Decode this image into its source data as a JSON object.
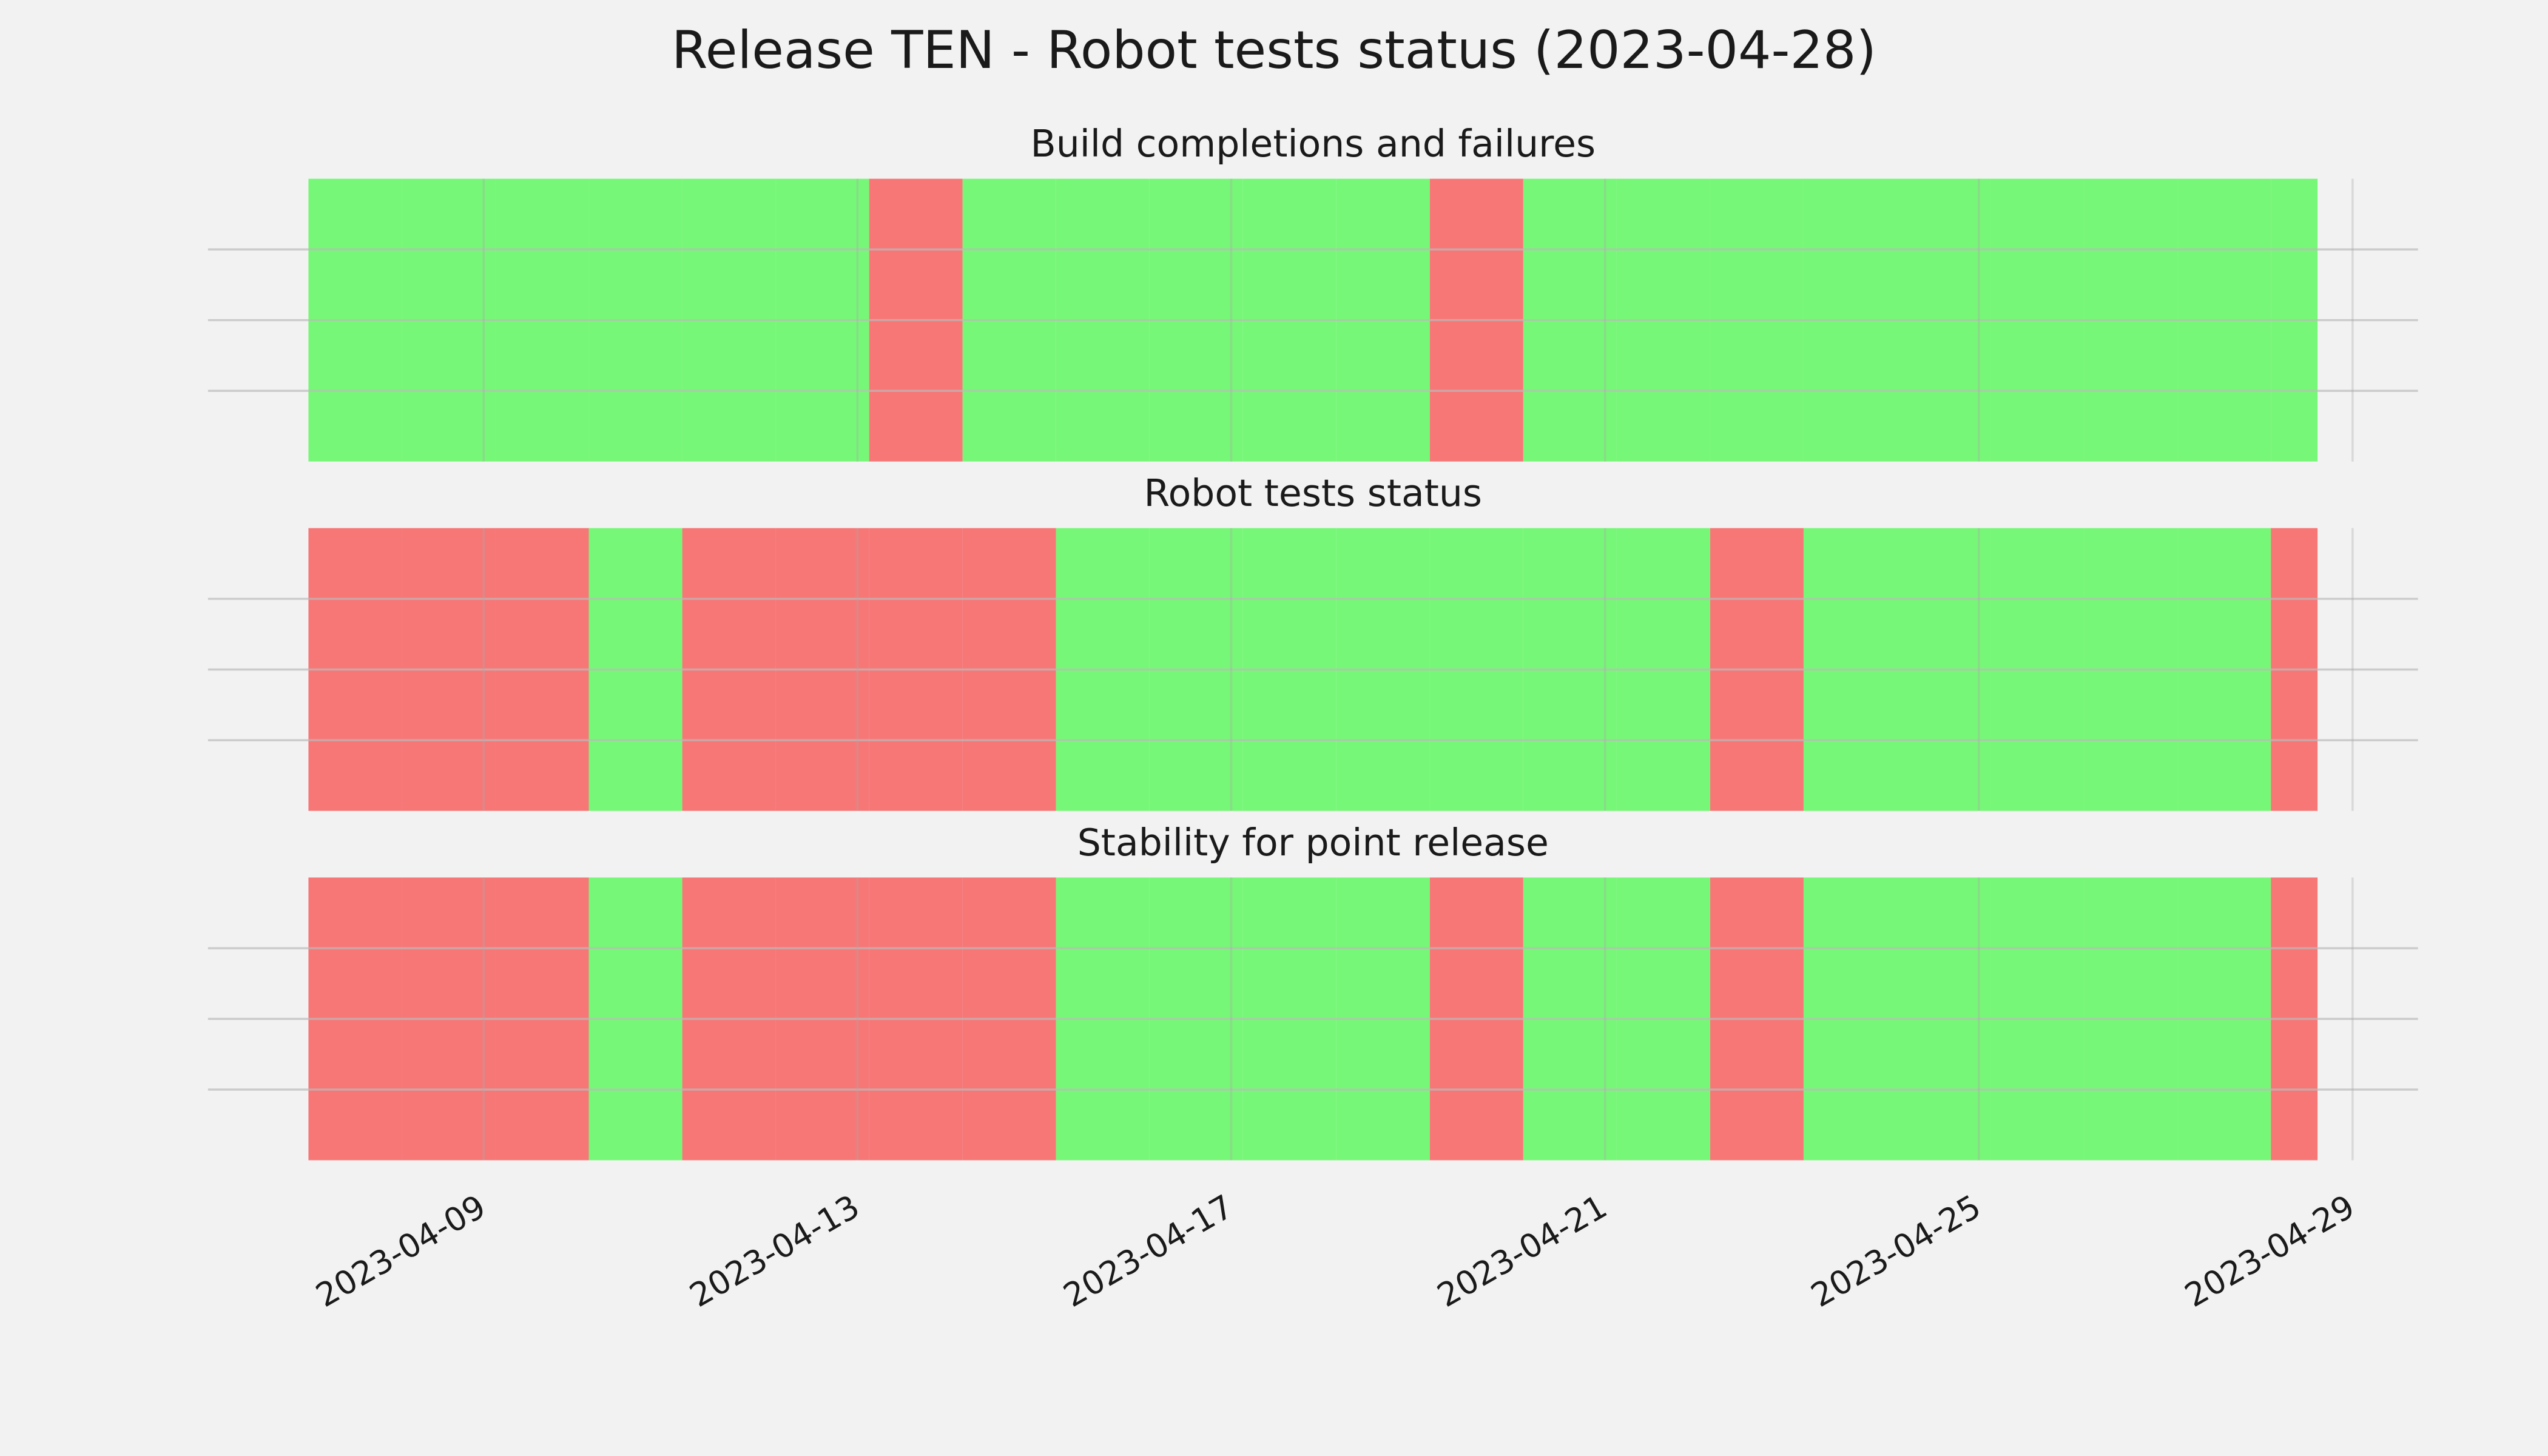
{
  "chart_data": {
    "type": "status-timeline",
    "title": "Release TEN - Robot tests status (2023-04-28)",
    "pass_color": "#77f777",
    "fail_color": "#f77777",
    "grid": true,
    "xlim": [
      "2023-04-06T01:12",
      "2023-04-29T16:48"
    ],
    "xticks": [
      "2023-04-09",
      "2023-04-13",
      "2023-04-17",
      "2023-04-21",
      "2023-04-25",
      "2023-04-29"
    ],
    "ylim": [
      0,
      1
    ],
    "yticks": [
      0.25,
      0.5,
      0.75
    ],
    "x": [
      "2023-04-07T03:00",
      "2023-04-08T03:00",
      "2023-04-09T03:00",
      "2023-04-10T03:00",
      "2023-04-11T03:00",
      "2023-04-12T03:00",
      "2023-04-13T03:00",
      "2023-04-14T03:00",
      "2023-04-15T03:00",
      "2023-04-16T03:00",
      "2023-04-17T03:00",
      "2023-04-18T03:00",
      "2023-04-19T03:00",
      "2023-04-20T03:00",
      "2023-04-21T03:00",
      "2023-04-22T03:00",
      "2023-04-23T03:00",
      "2023-04-24T03:00",
      "2023-04-25T03:00",
      "2023-04-26T03:00",
      "2023-04-27T03:00",
      "2023-04-28T03:00"
    ],
    "end": "2023-04-28T15:00",
    "panels": [
      {
        "title": "Build completions and failures",
        "status": [
          1,
          1,
          1,
          1,
          1,
          1,
          0,
          1,
          1,
          1,
          1,
          1,
          0,
          1,
          1,
          1,
          1,
          1,
          1,
          1,
          1,
          1
        ]
      },
      {
        "title": "Robot tests status",
        "status": [
          0,
          0,
          0,
          1,
          0,
          0,
          0,
          0,
          1,
          1,
          1,
          1,
          1,
          1,
          1,
          0,
          1,
          1,
          1,
          1,
          1,
          0
        ]
      },
      {
        "title": "Stability for point release",
        "status": [
          0,
          0,
          0,
          1,
          0,
          0,
          0,
          0,
          1,
          1,
          1,
          1,
          0,
          1,
          1,
          0,
          1,
          1,
          1,
          1,
          1,
          0
        ]
      }
    ]
  }
}
